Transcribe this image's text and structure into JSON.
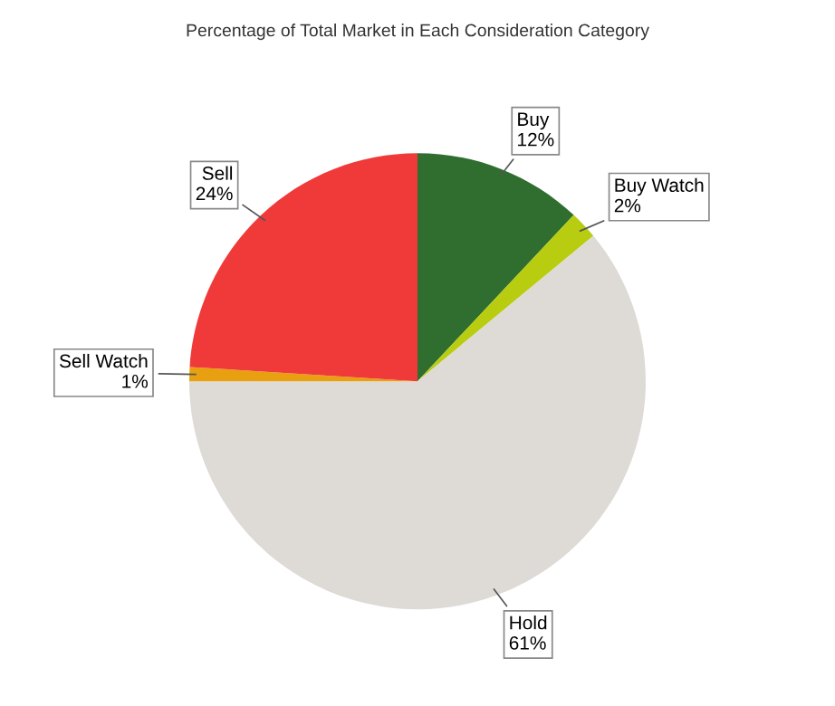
{
  "chart_data": {
    "type": "pie",
    "title": "Percentage of Total Market in Each Consideration Category",
    "categories": [
      "Buy",
      "Buy Watch",
      "Hold",
      "Sell Watch",
      "Sell"
    ],
    "values": [
      12,
      2,
      61,
      1,
      24
    ],
    "value_labels": [
      "12%",
      "2%",
      "61%",
      "1%",
      "24%"
    ],
    "colors": [
      "#2f6e2f",
      "#b8cc10",
      "#dedad6",
      "#e8a010",
      "#f03a3a"
    ]
  }
}
